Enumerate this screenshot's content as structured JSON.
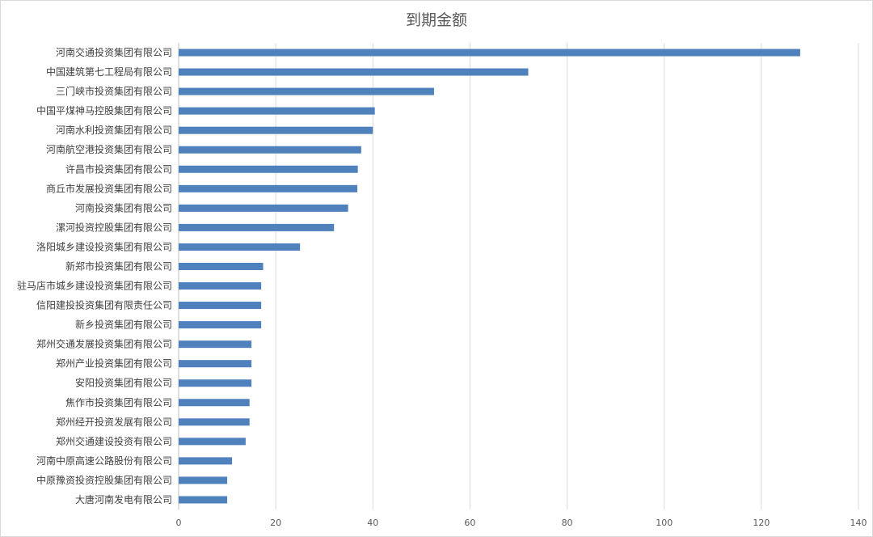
{
  "chart_data": {
    "type": "bar",
    "orientation": "horizontal",
    "title": "到期金额",
    "xlabel": "",
    "ylabel": "",
    "xlim": [
      0,
      140
    ],
    "xticks": [
      0,
      20,
      40,
      60,
      80,
      100,
      120,
      140
    ],
    "grid": true,
    "legend": "none",
    "bar_color": "#4f81bd",
    "categories": [
      "河南交通投资集团有限公司",
      "中国建筑第七工程局有限公司",
      "三门峡市投资集团有限公司",
      "中国平煤神马控股集团有限公司",
      "河南水利投资集团有限公司",
      "河南航空港投资集团有限公司",
      "许昌市投资集团有限公司",
      "商丘市发展投资集团有限公司",
      "河南投资集团有限公司",
      "漯河投资控股集团有限公司",
      "洛阳城乡建设投资集团有限公司",
      "新郑市投资集团有限公司",
      "驻马店市城乡建设投资集团有限公司",
      "信阳建投投资集团有限责任公司",
      "新乡投资集团有限公司",
      "郑州交通发展投资集团有限公司",
      "郑州产业投资集团有限公司",
      "安阳投资集团有限公司",
      "焦作市投资集团有限公司",
      "郑州经开投资发展有限公司",
      "郑州交通建设投资有限公司",
      "河南中原高速公路股份有限公司",
      "中原豫资投资控股集团有限公司",
      "大唐河南发电有限公司"
    ],
    "values": [
      128,
      72,
      52.6,
      40.4,
      40,
      37.6,
      36.9,
      36.8,
      34.9,
      32,
      25,
      17.4,
      17,
      17,
      17,
      15,
      15,
      15,
      14.6,
      14.6,
      13.8,
      11,
      10,
      10
    ]
  }
}
